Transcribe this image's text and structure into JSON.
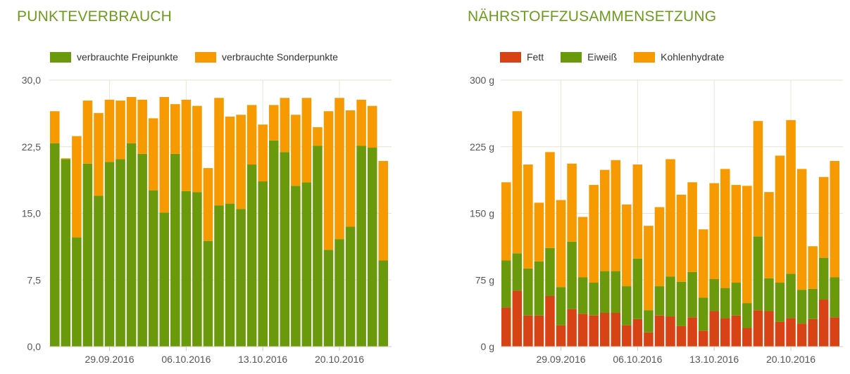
{
  "chart_data": [
    {
      "type": "bar",
      "stacked": true,
      "title": "PUNKTEVERBRAUCH",
      "xlabel": "",
      "ylabel": "",
      "ylim": [
        0,
        30
      ],
      "yticks": [
        "0,0",
        "7,5",
        "15,0",
        "22,5",
        "30,0"
      ],
      "xticks": [
        "29.09.2016",
        "06.10.2016",
        "13.10.2016",
        "20.10.2016"
      ],
      "grid": true,
      "legend": "top-left",
      "series": [
        {
          "name": "verbrauchte Freipunkte",
          "color": "#6a9a0c",
          "values": [
            22.9,
            21.1,
            12.3,
            20.6,
            17.0,
            20.8,
            21.1,
            22.9,
            21.7,
            17.6,
            15.1,
            21.7,
            17.5,
            17.4,
            11.9,
            15.9,
            16.1,
            15.5,
            20.5,
            18.6,
            23.2,
            21.9,
            18.1,
            18.5,
            22.6,
            10.9,
            12.1,
            13.5,
            22.6,
            22.4,
            9.7
          ]
        },
        {
          "name": "verbrauchte Sonderpunkte",
          "color": "#f79a00",
          "values": [
            3.6,
            0.1,
            11.4,
            7.1,
            9.3,
            7.0,
            6.6,
            5.2,
            6.1,
            8.1,
            13.0,
            5.6,
            10.3,
            9.7,
            8.2,
            12.1,
            9.8,
            10.6,
            6.7,
            6.4,
            4.0,
            6.1,
            8.0,
            9.5,
            2.1,
            15.6,
            15.9,
            13.1,
            5.2,
            4.7,
            11.2
          ]
        }
      ]
    },
    {
      "type": "bar",
      "stacked": true,
      "title": "NÄHRSTOFFZUSAMMENSETZUNG",
      "xlabel": "",
      "ylabel": "",
      "ylim": [
        0,
        300
      ],
      "yticks": [
        "0 g",
        "75 g",
        "150 g",
        "225 g",
        "300 g"
      ],
      "xticks": [
        "29.09.2016",
        "06.10.2016",
        "13.10.2016",
        "20.10.2016"
      ],
      "grid": true,
      "legend": "top-left",
      "series": [
        {
          "name": "Fett",
          "color": "#d84315",
          "values": [
            44,
            63,
            35,
            35,
            57,
            24,
            42,
            37,
            35,
            38,
            38,
            24,
            31,
            16,
            35,
            34,
            23,
            33,
            18,
            40,
            32,
            35,
            21,
            41,
            40,
            28,
            32,
            26,
            31,
            53,
            33
          ]
        },
        {
          "name": "Eiweiß",
          "color": "#6a9a0c",
          "values": [
            53,
            42,
            53,
            61,
            54,
            43,
            76,
            41,
            37,
            47,
            47,
            44,
            68,
            25,
            33,
            45,
            50,
            51,
            37,
            36,
            34,
            37,
            28,
            83,
            37,
            44,
            50,
            38,
            34,
            47,
            45
          ]
        },
        {
          "name": "Kohlenhydrate",
          "color": "#f79a00",
          "values": [
            88,
            160,
            117,
            66,
            108,
            98,
            88,
            68,
            110,
            114,
            125,
            92,
            106,
            95,
            89,
            132,
            98,
            101,
            77,
            108,
            134,
            110,
            132,
            130,
            97,
            143,
            173,
            136,
            48,
            91,
            131
          ]
        }
      ]
    }
  ]
}
